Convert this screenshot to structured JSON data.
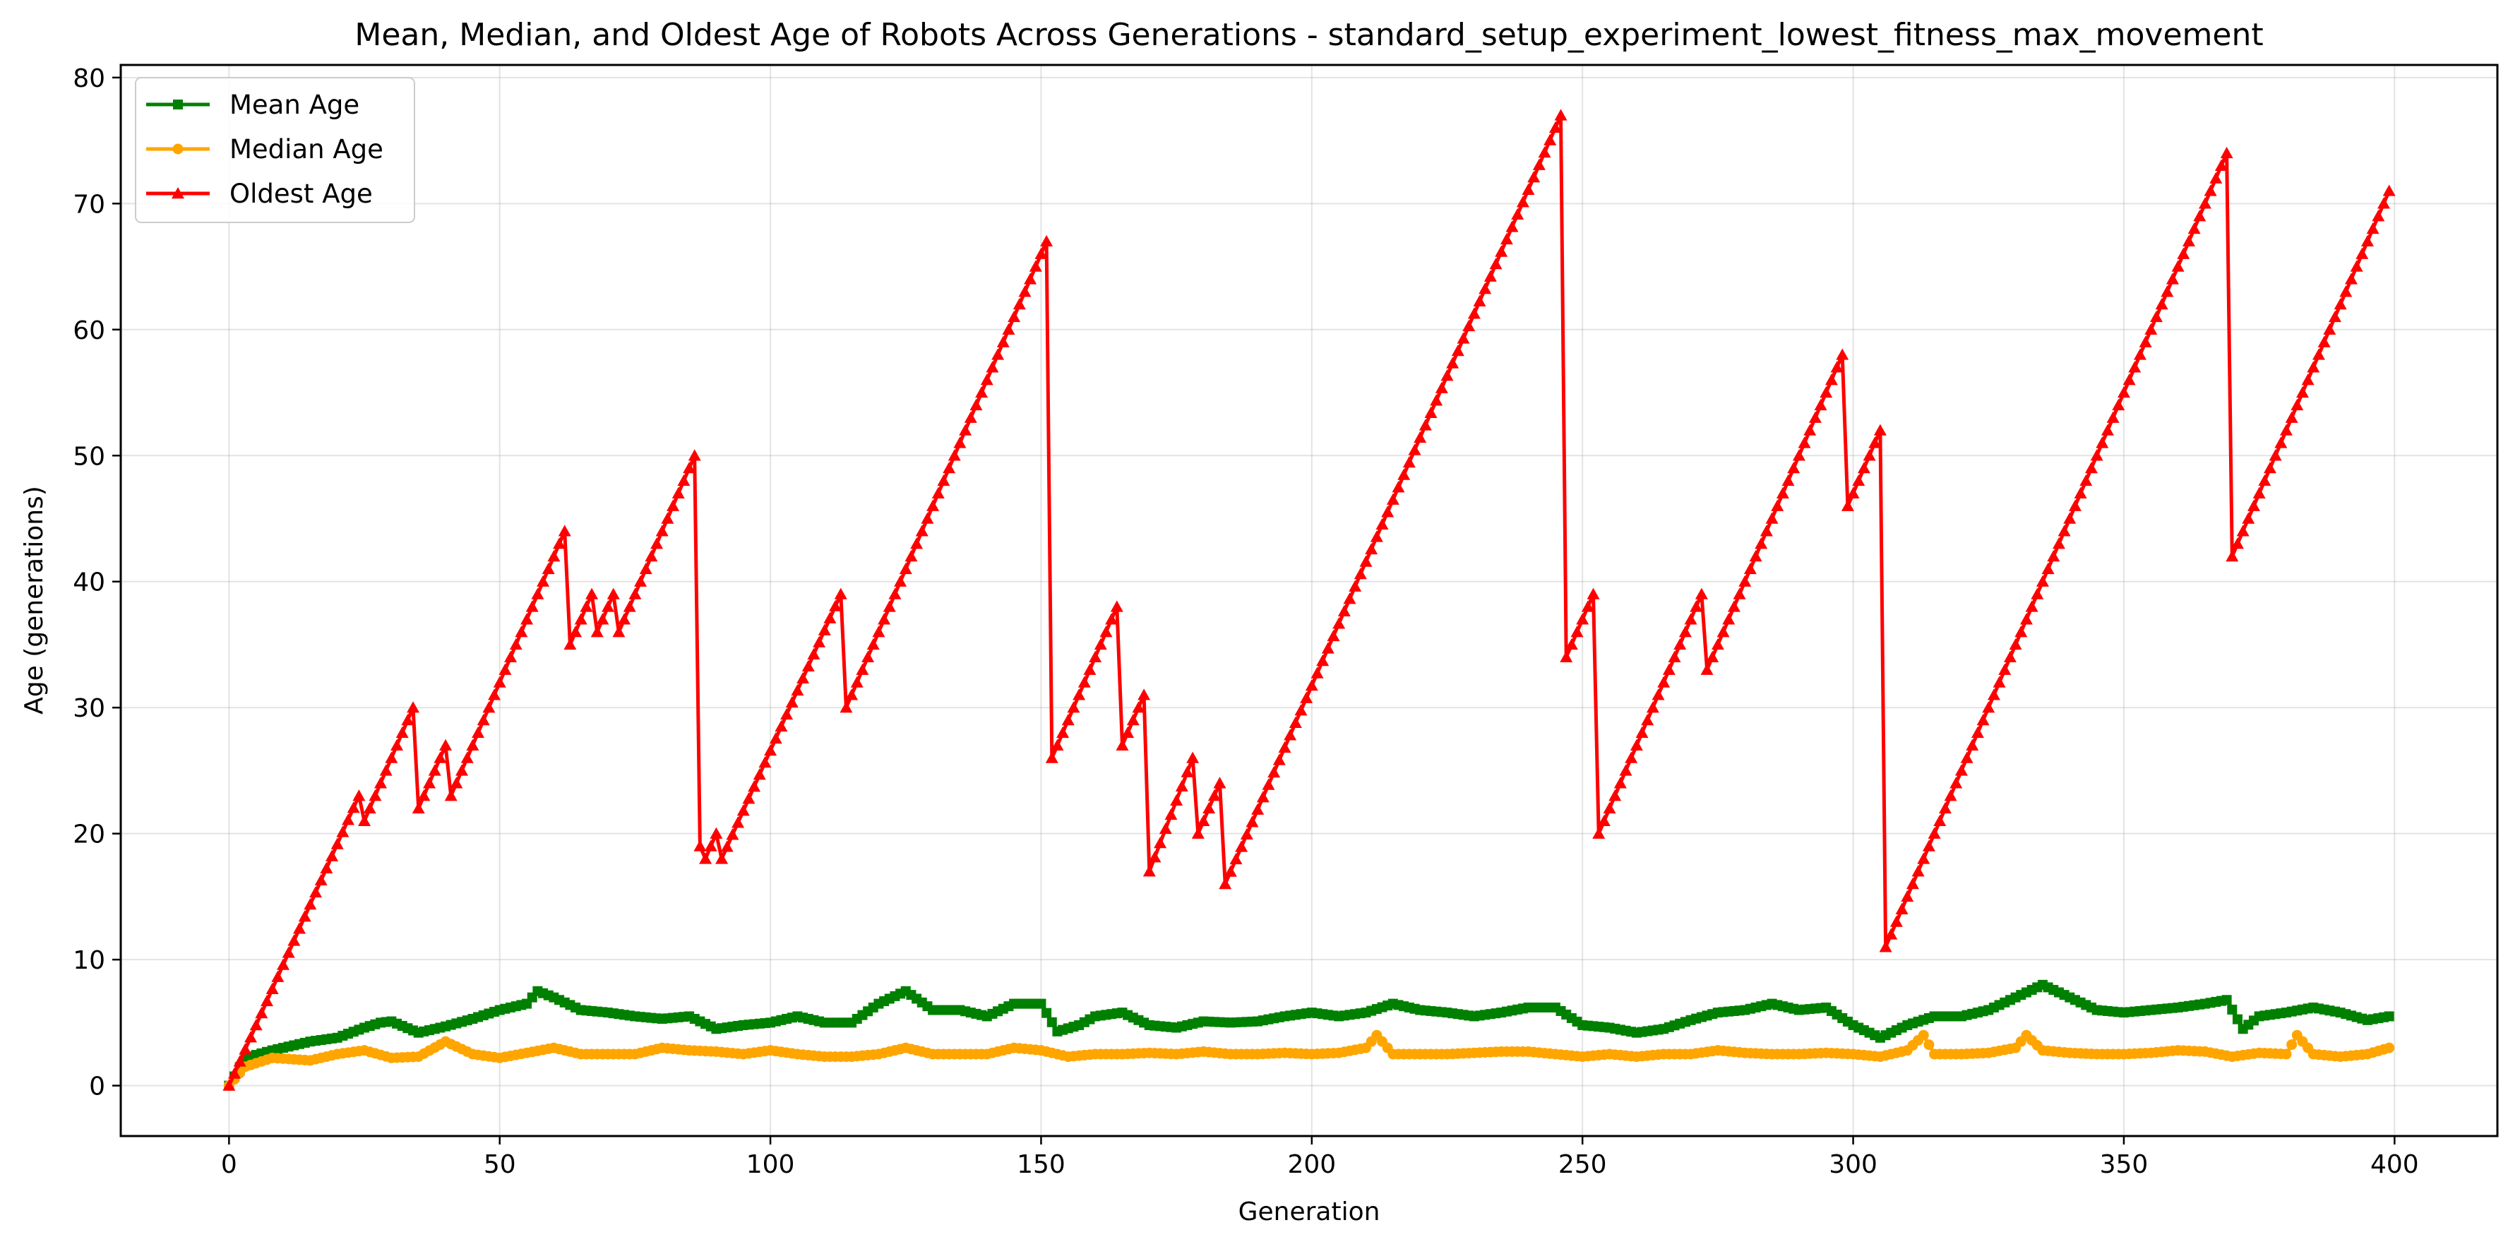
{
  "chart_data": {
    "type": "line",
    "title": "Mean, Median, and Oldest Age of Robots Across Generations - standard_setup_experiment_lowest_fitness_max_movement",
    "xlabel": "Generation",
    "ylabel": "Age (generations)",
    "xlim": [
      -20,
      419
    ],
    "ylim": [
      -4,
      81
    ],
    "xticks": [
      0,
      50,
      100,
      150,
      200,
      250,
      300,
      350,
      400
    ],
    "yticks": [
      0,
      10,
      20,
      30,
      40,
      50,
      60,
      70,
      80
    ],
    "grid": true,
    "legend_position": "upper-left",
    "x_range": [
      0,
      399
    ],
    "series": [
      {
        "name": "Mean Age",
        "color": "#008000",
        "marker": "square",
        "points": [
          [
            0,
            0
          ],
          [
            3,
            2.2
          ],
          [
            8,
            2.8
          ],
          [
            15,
            3.5
          ],
          [
            20,
            3.8
          ],
          [
            25,
            4.6
          ],
          [
            28,
            5.0
          ],
          [
            30,
            5.1
          ],
          [
            35,
            4.2
          ],
          [
            40,
            4.7
          ],
          [
            45,
            5.3
          ],
          [
            50,
            6.0
          ],
          [
            55,
            6.5
          ],
          [
            57,
            7.5
          ],
          [
            60,
            7.0
          ],
          [
            65,
            6.0
          ],
          [
            70,
            5.8
          ],
          [
            75,
            5.5
          ],
          [
            80,
            5.3
          ],
          [
            85,
            5.5
          ],
          [
            90,
            4.5
          ],
          [
            95,
            4.8
          ],
          [
            100,
            5.0
          ],
          [
            105,
            5.5
          ],
          [
            110,
            5.0
          ],
          [
            115,
            5.0
          ],
          [
            120,
            6.5
          ],
          [
            125,
            7.5
          ],
          [
            130,
            6.0
          ],
          [
            135,
            6.0
          ],
          [
            140,
            5.5
          ],
          [
            145,
            6.5
          ],
          [
            150,
            6.5
          ],
          [
            153,
            4.3
          ],
          [
            157,
            4.8
          ],
          [
            160,
            5.5
          ],
          [
            165,
            5.8
          ],
          [
            170,
            4.8
          ],
          [
            175,
            4.6
          ],
          [
            180,
            5.1
          ],
          [
            185,
            5.0
          ],
          [
            190,
            5.1
          ],
          [
            195,
            5.5
          ],
          [
            200,
            5.8
          ],
          [
            205,
            5.5
          ],
          [
            210,
            5.8
          ],
          [
            215,
            6.5
          ],
          [
            220,
            6.0
          ],
          [
            225,
            5.8
          ],
          [
            230,
            5.5
          ],
          [
            235,
            5.8
          ],
          [
            240,
            6.2
          ],
          [
            245,
            6.2
          ],
          [
            250,
            4.8
          ],
          [
            255,
            4.6
          ],
          [
            260,
            4.2
          ],
          [
            265,
            4.5
          ],
          [
            270,
            5.2
          ],
          [
            275,
            5.8
          ],
          [
            280,
            6.0
          ],
          [
            285,
            6.5
          ],
          [
            290,
            6.0
          ],
          [
            295,
            6.2
          ],
          [
            300,
            4.8
          ],
          [
            305,
            3.8
          ],
          [
            310,
            4.8
          ],
          [
            315,
            5.5
          ],
          [
            320,
            5.5
          ],
          [
            325,
            6.0
          ],
          [
            330,
            7.0
          ],
          [
            335,
            8.0
          ],
          [
            340,
            7.0
          ],
          [
            345,
            6.0
          ],
          [
            350,
            5.8
          ],
          [
            355,
            6.0
          ],
          [
            360,
            6.2
          ],
          [
            365,
            6.5
          ],
          [
            369,
            6.8
          ],
          [
            372,
            4.5
          ],
          [
            375,
            5.5
          ],
          [
            380,
            5.8
          ],
          [
            385,
            6.2
          ],
          [
            390,
            5.8
          ],
          [
            395,
            5.2
          ],
          [
            399,
            5.5
          ]
        ]
      },
      {
        "name": "Median Age",
        "color": "#FFA500",
        "marker": "circle",
        "points": [
          [
            0,
            0
          ],
          [
            3,
            1.5
          ],
          [
            8,
            2.2
          ],
          [
            15,
            2.0
          ],
          [
            20,
            2.5
          ],
          [
            25,
            2.8
          ],
          [
            30,
            2.2
          ],
          [
            35,
            2.3
          ],
          [
            40,
            3.5
          ],
          [
            45,
            2.5
          ],
          [
            50,
            2.2
          ],
          [
            55,
            2.6
          ],
          [
            60,
            3.0
          ],
          [
            65,
            2.5
          ],
          [
            70,
            2.5
          ],
          [
            75,
            2.5
          ],
          [
            80,
            3.0
          ],
          [
            85,
            2.8
          ],
          [
            90,
            2.7
          ],
          [
            95,
            2.5
          ],
          [
            100,
            2.8
          ],
          [
            105,
            2.5
          ],
          [
            110,
            2.3
          ],
          [
            115,
            2.3
          ],
          [
            120,
            2.5
          ],
          [
            125,
            3.0
          ],
          [
            130,
            2.5
          ],
          [
            135,
            2.5
          ],
          [
            140,
            2.5
          ],
          [
            145,
            3.0
          ],
          [
            150,
            2.8
          ],
          [
            155,
            2.3
          ],
          [
            160,
            2.5
          ],
          [
            165,
            2.5
          ],
          [
            170,
            2.6
          ],
          [
            175,
            2.5
          ],
          [
            180,
            2.7
          ],
          [
            185,
            2.5
          ],
          [
            190,
            2.5
          ],
          [
            195,
            2.6
          ],
          [
            200,
            2.5
          ],
          [
            205,
            2.6
          ],
          [
            210,
            3.0
          ],
          [
            212,
            4.0
          ],
          [
            215,
            2.5
          ],
          [
            220,
            2.5
          ],
          [
            225,
            2.5
          ],
          [
            230,
            2.6
          ],
          [
            235,
            2.7
          ],
          [
            240,
            2.7
          ],
          [
            245,
            2.5
          ],
          [
            250,
            2.3
          ],
          [
            255,
            2.5
          ],
          [
            260,
            2.3
          ],
          [
            265,
            2.5
          ],
          [
            270,
            2.5
          ],
          [
            275,
            2.8
          ],
          [
            280,
            2.6
          ],
          [
            285,
            2.5
          ],
          [
            290,
            2.5
          ],
          [
            295,
            2.6
          ],
          [
            300,
            2.5
          ],
          [
            305,
            2.3
          ],
          [
            310,
            2.8
          ],
          [
            313,
            4.0
          ],
          [
            315,
            2.5
          ],
          [
            320,
            2.5
          ],
          [
            325,
            2.6
          ],
          [
            330,
            3.0
          ],
          [
            332,
            4.0
          ],
          [
            335,
            2.8
          ],
          [
            340,
            2.6
          ],
          [
            345,
            2.5
          ],
          [
            350,
            2.5
          ],
          [
            355,
            2.6
          ],
          [
            360,
            2.8
          ],
          [
            365,
            2.7
          ],
          [
            370,
            2.3
          ],
          [
            375,
            2.6
          ],
          [
            380,
            2.5
          ],
          [
            382,
            4.0
          ],
          [
            385,
            2.5
          ],
          [
            390,
            2.3
          ],
          [
            395,
            2.5
          ],
          [
            399,
            3.0
          ]
        ]
      },
      {
        "name": "Oldest Age",
        "color": "#FF0000",
        "marker": "triangle",
        "points": [
          [
            0,
            0
          ],
          [
            24,
            23
          ],
          [
            25,
            21
          ],
          [
            34,
            30
          ],
          [
            35,
            22
          ],
          [
            40,
            27
          ],
          [
            41,
            23
          ],
          [
            62,
            44
          ],
          [
            63,
            35
          ],
          [
            67,
            39
          ],
          [
            68,
            36
          ],
          [
            71,
            39
          ],
          [
            72,
            36
          ],
          [
            86,
            50
          ],
          [
            87,
            19
          ],
          [
            88,
            18
          ],
          [
            90,
            20
          ],
          [
            91,
            18
          ],
          [
            113,
            39
          ],
          [
            114,
            30
          ],
          [
            151,
            67
          ],
          [
            152,
            26
          ],
          [
            164,
            38
          ],
          [
            165,
            27
          ],
          [
            169,
            31
          ],
          [
            170,
            17
          ],
          [
            178,
            26
          ],
          [
            179,
            20
          ],
          [
            183,
            24
          ],
          [
            184,
            16
          ],
          [
            246,
            77
          ],
          [
            247,
            34
          ],
          [
            252,
            39
          ],
          [
            253,
            20
          ],
          [
            272,
            39
          ],
          [
            273,
            33
          ],
          [
            298,
            58
          ],
          [
            299,
            46
          ],
          [
            305,
            52
          ],
          [
            306,
            11
          ],
          [
            369,
            74
          ],
          [
            370,
            42
          ],
          [
            399,
            71
          ]
        ]
      }
    ]
  }
}
